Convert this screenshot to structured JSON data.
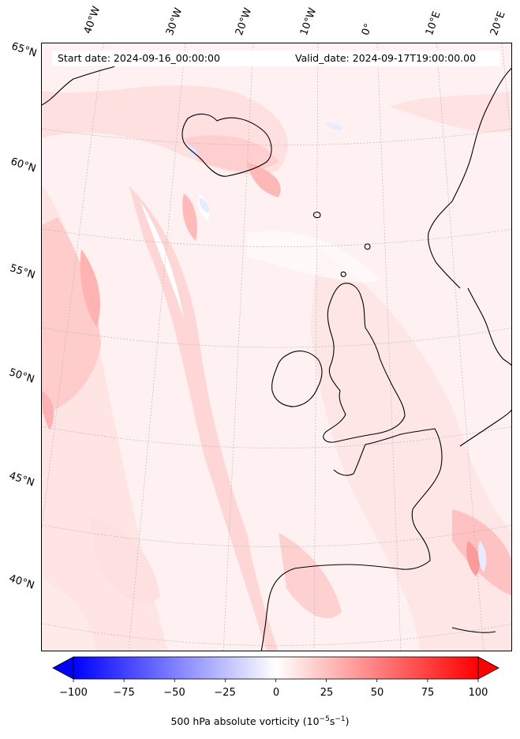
{
  "header": {
    "start_date": "Start date: 2024-09-16_00:00:00",
    "valid_date": "Valid_date: 2024-09-17T19:00:00.00"
  },
  "map": {
    "longitude_labels": [
      "40°W",
      "30°W",
      "20°W",
      "10°W",
      "0°",
      "10°E",
      "20°E"
    ],
    "latitude_labels": [
      "65°N",
      "60°N",
      "55°N",
      "50°N",
      "45°N",
      "40°N"
    ],
    "gridlines": "dashed",
    "coastlines": "black"
  },
  "colorbar": {
    "ticks": [
      "−100",
      "−75",
      "−50",
      "−25",
      "0",
      "25",
      "50",
      "75",
      "100"
    ],
    "min": -100,
    "max": 100,
    "cmap": "bwr",
    "extend": "both",
    "title_main": "500 hPa absolute vorticity (10",
    "title_exp1": "−5",
    "title_mid": "s",
    "title_exp2": "−1",
    "title_end": ")"
  },
  "colors": {
    "negative": "#0000ff",
    "zero": "#ffffff",
    "positive": "#ff0000"
  }
}
